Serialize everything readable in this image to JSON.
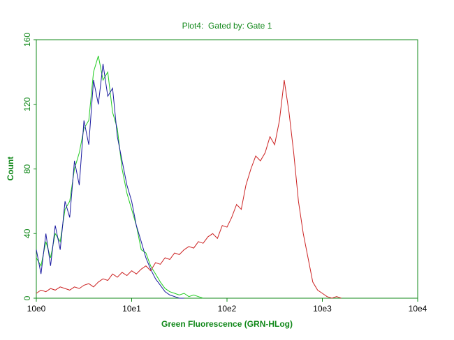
{
  "chart_data": {
    "type": "line",
    "title": "Plot4:  Gated by: Gate 1",
    "xlabel": "Green Fluorescence (GRN-HLog)",
    "ylabel": "Count",
    "xscale": "log",
    "xlim": [
      1,
      10000
    ],
    "xticks": [
      {
        "value": 1,
        "label": "10e0"
      },
      {
        "value": 10,
        "label": "10e1"
      },
      {
        "value": 100,
        "label": "10e2"
      },
      {
        "value": 1000,
        "label": "10e3"
      },
      {
        "value": 10000,
        "label": "10e4"
      }
    ],
    "ylim": [
      0,
      160
    ],
    "yticks": [
      0,
      40,
      80,
      120,
      160
    ],
    "axis_color": "#11881a",
    "x": [
      1,
      1.12,
      1.26,
      1.41,
      1.58,
      1.78,
      2.0,
      2.24,
      2.51,
      2.82,
      3.16,
      3.55,
      3.98,
      4.47,
      5.01,
      5.62,
      6.31,
      7.08,
      7.94,
      8.91,
      10,
      11.2,
      12.6,
      14.1,
      15.8,
      17.8,
      20,
      22.4,
      25.1,
      28.2,
      31.6,
      35.5,
      39.8,
      44.7,
      50.1,
      56.2,
      63.1,
      70.8,
      79.4,
      89.1,
      100,
      112,
      126,
      141,
      158,
      178,
      200,
      224,
      251,
      282,
      316,
      355,
      398,
      447,
      501,
      562,
      631,
      708,
      794,
      891,
      1000,
      1120,
      1260,
      1410,
      1580
    ],
    "series": [
      {
        "color": "#22cc22",
        "values": [
          25,
          20,
          35,
          25,
          40,
          35,
          55,
          60,
          80,
          90,
          105,
          110,
          140,
          150,
          135,
          140,
          115,
          105,
          80,
          65,
          55,
          45,
          30,
          28,
          20,
          15,
          10,
          6,
          4,
          3,
          2,
          3,
          1,
          2,
          1,
          0,
          null,
          null,
          null,
          null,
          null,
          null,
          null,
          null,
          null,
          null,
          null,
          null,
          null,
          null,
          null,
          null,
          null,
          null,
          null,
          null,
          null,
          null,
          null,
          null,
          null,
          null,
          null,
          null,
          null
        ]
      },
      {
        "color": "#1a1aa0",
        "values": [
          30,
          15,
          40,
          20,
          45,
          30,
          60,
          50,
          85,
          70,
          110,
          95,
          135,
          120,
          145,
          125,
          130,
          100,
          85,
          70,
          60,
          45,
          35,
          25,
          18,
          12,
          8,
          4,
          2,
          1,
          0,
          0,
          null,
          null,
          null,
          null,
          null,
          null,
          null,
          null,
          null,
          null,
          null,
          null,
          null,
          null,
          null,
          null,
          null,
          null,
          null,
          null,
          null,
          null,
          null,
          null,
          null,
          null,
          null,
          null,
          null,
          null,
          null,
          null,
          null
        ]
      },
      {
        "color": "#cc2222",
        "values": [
          3,
          5,
          4,
          6,
          5,
          7,
          6,
          5,
          7,
          6,
          8,
          9,
          7,
          10,
          12,
          11,
          15,
          13,
          16,
          14,
          17,
          15,
          18,
          20,
          17,
          22,
          21,
          25,
          24,
          28,
          27,
          30,
          32,
          31,
          35,
          34,
          38,
          40,
          37,
          45,
          44,
          50,
          58,
          55,
          70,
          80,
          88,
          85,
          90,
          100,
          95,
          110,
          135,
          115,
          90,
          60,
          40,
          25,
          10,
          5,
          3,
          1,
          0,
          1,
          0
        ]
      }
    ]
  }
}
